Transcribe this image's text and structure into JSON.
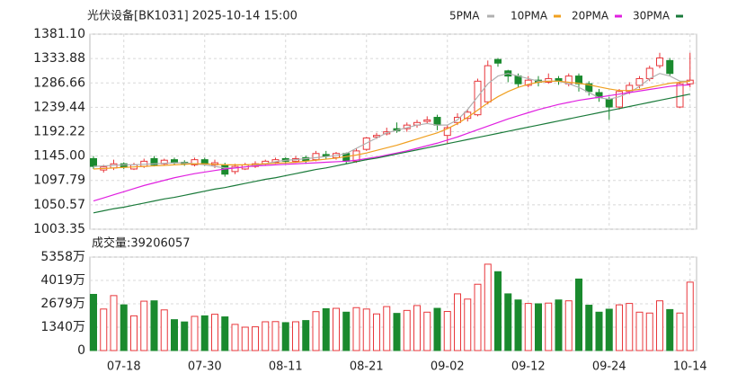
{
  "chart_data": [
    {
      "type": "candlestick",
      "title": "光伏设备[BK1031] 2025-10-14 15:00",
      "categories": [
        null,
        null,
        null,
        "07-18",
        null,
        null,
        null,
        null,
        null,
        null,
        null,
        "07-30",
        null,
        null,
        null,
        null,
        null,
        null,
        null,
        "08-11",
        null,
        null,
        null,
        null,
        null,
        null,
        null,
        "08-21",
        null,
        null,
        null,
        null,
        null,
        null,
        null,
        "09-02",
        null,
        null,
        null,
        null,
        null,
        null,
        null,
        "09-12",
        null,
        null,
        null,
        null,
        null,
        null,
        null,
        "09-24",
        null,
        null,
        null,
        null,
        null,
        null,
        null,
        "10-14"
      ],
      "open": [
        1140,
        1118,
        1122,
        1130,
        1120,
        1125,
        1140,
        1130,
        1138,
        1133,
        1128,
        1138,
        1128,
        1128,
        1115,
        1120,
        1125,
        1130,
        1133,
        1140,
        1135,
        1142,
        1138,
        1148,
        1142,
        1150,
        1135,
        1158,
        1182,
        1188,
        1198,
        1198,
        1205,
        1212,
        1220,
        1185,
        1210,
        1218,
        1225,
        1250,
        1332,
        1310,
        1300,
        1282,
        1292,
        1288,
        1295,
        1285,
        1300,
        1285,
        1268,
        1255,
        1240,
        1270,
        1282,
        1295,
        1320,
        1330,
        1240,
        1285
      ],
      "high": [
        1145,
        1128,
        1138,
        1133,
        1132,
        1140,
        1145,
        1140,
        1142,
        1137,
        1142,
        1142,
        1138,
        1132,
        1130,
        1132,
        1135,
        1138,
        1142,
        1143,
        1145,
        1146,
        1155,
        1155,
        1153,
        1152,
        1160,
        1182,
        1190,
        1200,
        1210,
        1210,
        1215,
        1222,
        1225,
        1205,
        1228,
        1235,
        1295,
        1330,
        1335,
        1312,
        1305,
        1300,
        1300,
        1305,
        1300,
        1305,
        1305,
        1290,
        1275,
        1260,
        1275,
        1288,
        1300,
        1320,
        1345,
        1335,
        1290,
        1345
      ],
      "low": [
        1120,
        1113,
        1118,
        1120,
        1118,
        1122,
        1125,
        1127,
        1128,
        1126,
        1125,
        1126,
        1122,
        1105,
        1110,
        1118,
        1122,
        1126,
        1130,
        1130,
        1132,
        1130,
        1135,
        1140,
        1138,
        1130,
        1132,
        1155,
        1178,
        1185,
        1190,
        1192,
        1200,
        1208,
        1195,
        1170,
        1205,
        1212,
        1222,
        1245,
        1318,
        1288,
        1278,
        1278,
        1280,
        1285,
        1283,
        1280,
        1270,
        1262,
        1250,
        1215,
        1235,
        1265,
        1276,
        1290,
        1315,
        1300,
        1238,
        1278
      ],
      "close": [
        1125,
        1124,
        1130,
        1124,
        1128,
        1135,
        1128,
        1137,
        1132,
        1130,
        1138,
        1130,
        1132,
        1110,
        1125,
        1128,
        1130,
        1135,
        1138,
        1135,
        1140,
        1136,
        1150,
        1145,
        1150,
        1135,
        1155,
        1180,
        1185,
        1192,
        1194,
        1205,
        1210,
        1215,
        1205,
        1200,
        1220,
        1230,
        1290,
        1320,
        1325,
        1300,
        1285,
        1292,
        1288,
        1295,
        1290,
        1300,
        1285,
        1270,
        1258,
        1240,
        1270,
        1282,
        1295,
        1315,
        1335,
        1305,
        1285,
        1292
      ],
      "up_color": "#e8373b",
      "down_color": "#1a8a2e",
      "series": [
        {
          "name": "5PMA",
          "color": "#b0b0b0",
          "values": [
            1125,
            1126,
            1127,
            1128,
            1128,
            1129,
            1130,
            1131,
            1132,
            1132,
            1130,
            1128,
            1125,
            1122,
            1122,
            1124,
            1127,
            1130,
            1134,
            1137,
            1138,
            1140,
            1142,
            1144,
            1146,
            1150,
            1160,
            1170,
            1180,
            1190,
            1195,
            1200,
            1205,
            1208,
            1205,
            1205,
            1215,
            1235,
            1260,
            1285,
            1300,
            1305,
            1300,
            1295,
            1290,
            1290,
            1290,
            1285,
            1278,
            1268,
            1258,
            1255,
            1260,
            1268,
            1280,
            1295,
            1305,
            1300,
            1290,
            1290
          ]
        },
        {
          "name": "10PMA",
          "color": "#f0a020",
          "values": [
            1120,
            1121,
            1122,
            1123,
            1124,
            1125,
            1126,
            1127,
            1128,
            1129,
            1130,
            1130,
            1129,
            1128,
            1128,
            1128,
            1129,
            1130,
            1131,
            1132,
            1133,
            1135,
            1137,
            1139,
            1141,
            1144,
            1147,
            1151,
            1156,
            1161,
            1166,
            1172,
            1178,
            1184,
            1190,
            1198,
            1208,
            1220,
            1234,
            1248,
            1260,
            1270,
            1278,
            1284,
            1288,
            1290,
            1290,
            1288,
            1286,
            1283,
            1279,
            1275,
            1272,
            1272,
            1274,
            1278,
            1282,
            1286,
            1288,
            1290
          ]
        },
        {
          "name": "20PMA",
          "color": "#e020e0",
          "values": [
            1058,
            1064,
            1070,
            1076,
            1082,
            1088,
            1093,
            1098,
            1103,
            1107,
            1111,
            1114,
            1117,
            1120,
            1122,
            1124,
            1126,
            1127,
            1128,
            1129,
            1130,
            1131,
            1132,
            1133,
            1134,
            1135,
            1137,
            1140,
            1143,
            1147,
            1151,
            1155,
            1160,
            1165,
            1170,
            1176,
            1182,
            1189,
            1196,
            1203,
            1210,
            1217,
            1223,
            1229,
            1235,
            1240,
            1245,
            1249,
            1253,
            1256,
            1259,
            1262,
            1265,
            1268,
            1271,
            1274,
            1277,
            1280,
            1282,
            1283
          ]
        },
        {
          "name": "30PMA",
          "color": "#1a7a3a",
          "values": [
            1035,
            1039,
            1043,
            1046,
            1050,
            1054,
            1058,
            1062,
            1065,
            1069,
            1073,
            1077,
            1081,
            1084,
            1088,
            1092,
            1096,
            1100,
            1103,
            1107,
            1111,
            1115,
            1119,
            1122,
            1126,
            1130,
            1134,
            1138,
            1141,
            1145,
            1149,
            1153,
            1157,
            1161,
            1165,
            1169,
            1173,
            1177,
            1181,
            1185,
            1189,
            1193,
            1197,
            1201,
            1205,
            1209,
            1213,
            1217,
            1221,
            1225,
            1229,
            1233,
            1237,
            1241,
            1245,
            1249,
            1253,
            1257,
            1261,
            1265
          ]
        }
      ],
      "ylim": [
        1003.35,
        1381.1
      ],
      "yticks": [
        1003.35,
        1050.57,
        1097.79,
        {
          "value": 1145,
          "label": "1145.00"
        },
        1192.22,
        1239.44,
        1286.66,
        1333.88,
        {
          "value": 1381.1,
          "label": "1381.10"
        }
      ],
      "grid": true
    },
    {
      "type": "bar",
      "title": "成交量:39206057",
      "values": [
        3220,
        2380,
        3150,
        2620,
        1990,
        2830,
        2850,
        2330,
        1770,
        1640,
        1960,
        1990,
        2080,
        1930,
        1500,
        1340,
        1360,
        1650,
        1660,
        1600,
        1650,
        1720,
        2230,
        2400,
        2420,
        2200,
        2460,
        2380,
        2100,
        2520,
        2130,
        2300,
        2580,
        2200,
        2420,
        2240,
        3250,
        2950,
        3800,
        4950,
        4520,
        3250,
        2900,
        2700,
        2680,
        2720,
        2900,
        2850,
        4100,
        2600,
        2200,
        2370,
        2620,
        2700,
        2200,
        2150,
        2850,
        2350,
        2150,
        3920.6
      ],
      "ylim": [
        0,
        5358
      ],
      "yticks": [
        0,
        {
          "value": 1340,
          "label": "1340万"
        },
        {
          "value": 2679,
          "label": "2679万"
        },
        {
          "value": 4019,
          "label": "4019万"
        },
        {
          "value": 5358,
          "label": "5358万"
        }
      ],
      "grid": true
    }
  ]
}
